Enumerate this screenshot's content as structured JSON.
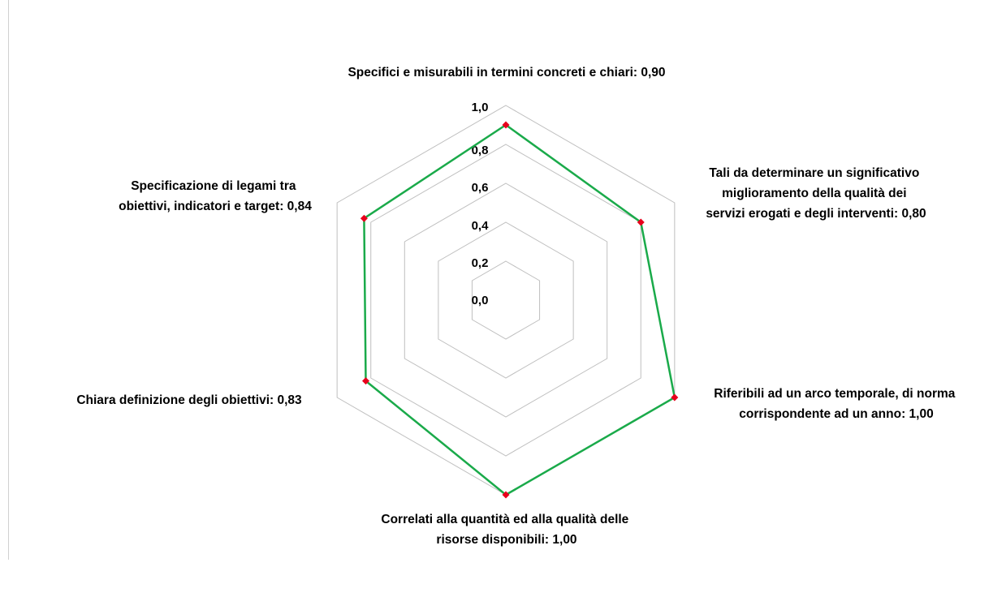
{
  "chart_data": {
    "type": "radar",
    "range": [
      0,
      1.0
    ],
    "ticks": [
      "0,0",
      "0,2",
      "0,4",
      "0,6",
      "0,8",
      "1,0"
    ],
    "grid": true,
    "series_color": "#1aaa4a",
    "marker_color": "#e8001c",
    "grid_color": "#bfbfbf",
    "categories": [
      {
        "lines": [
          "Specifici e misurabili in termini concreti e chiari: 0,90"
        ],
        "value": 0.9
      },
      {
        "lines": [
          "Tali da determinare un significativo",
          "miglioramento  della qualità dei",
          "servizi erogati e degli interventi: 0,80"
        ],
        "value": 0.8
      },
      {
        "lines": [
          "Riferibili ad un arco temporale, di norma",
          "corrispondente ad un anno: 1,00"
        ],
        "value": 1.0
      },
      {
        "lines": [
          "Correlati alla quantità ed alla qualità delle",
          "risorse disponibili: 1,00"
        ],
        "value": 1.0
      },
      {
        "lines": [
          "Chiara definizione degli obiettivi: 0,83"
        ],
        "value": 0.83
      },
      {
        "lines": [
          "Specificazione di legami tra",
          "obiettivi, indicatori e target: 0,84"
        ],
        "value": 0.84
      }
    ]
  }
}
